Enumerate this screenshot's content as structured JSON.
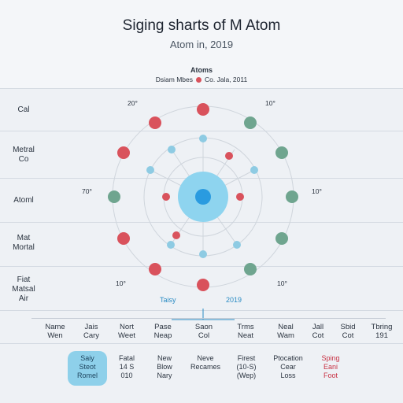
{
  "header": {
    "title": "Siging sharts of M Atom",
    "subtitle": "Atom in, 2019",
    "legend_title": "Atoms",
    "legend_left": "Dsiam Mbes",
    "legend_right": "Co. Jala, 2011"
  },
  "rows": [
    {
      "label": "Cal"
    },
    {
      "label": "Metral\nCo"
    },
    {
      "label": "Atoml"
    },
    {
      "label": "Mat\nMortal"
    },
    {
      "label": "Fiat\nMatsal\nAir"
    }
  ],
  "ticks": {
    "top_left": "20°",
    "top_right": "10°",
    "mid_left": "70°",
    "mid_right": "10°",
    "bottom_left": "10°",
    "bottom_right": "10°"
  },
  "band": {
    "left": "Taisy",
    "right": "2019"
  },
  "columns": [
    "Name\nWen",
    "Jais\nCary",
    "Nort\nWeet",
    "Pase\nNeap",
    "Saon\nCol",
    "Trms\nNeat",
    "Neal\nWam",
    "Jall\nCot",
    "Sbid\nCot",
    "Tbring\n191"
  ],
  "options": [
    {
      "label": "Saiy\nSteot\nRomel",
      "selected": true,
      "alert": false
    },
    {
      "label": "Fatal\n14 S\n010",
      "selected": false,
      "alert": false
    },
    {
      "label": "New\nBlow\nNary",
      "selected": false,
      "alert": false
    },
    {
      "label": "Neve\nRecames",
      "selected": false,
      "alert": false
    },
    {
      "label": "Firest\n(10-S)\n(Wep)",
      "selected": false,
      "alert": false
    },
    {
      "label": "Ptocation\nCear\nLoss",
      "selected": false,
      "alert": false
    },
    {
      "label": "Sping\nEani\nFoot",
      "selected": false,
      "alert": true
    }
  ],
  "colors": {
    "red": "#d9525c",
    "green": "#6fa58f",
    "blue": "#8ecbe3",
    "nucleus_outer": "#8ed4ef",
    "nucleus_inner": "#2a9be0",
    "orbit": "#cfd5dc",
    "accent_blue": "#2b8cc4",
    "alert_red": "#c83244"
  }
}
